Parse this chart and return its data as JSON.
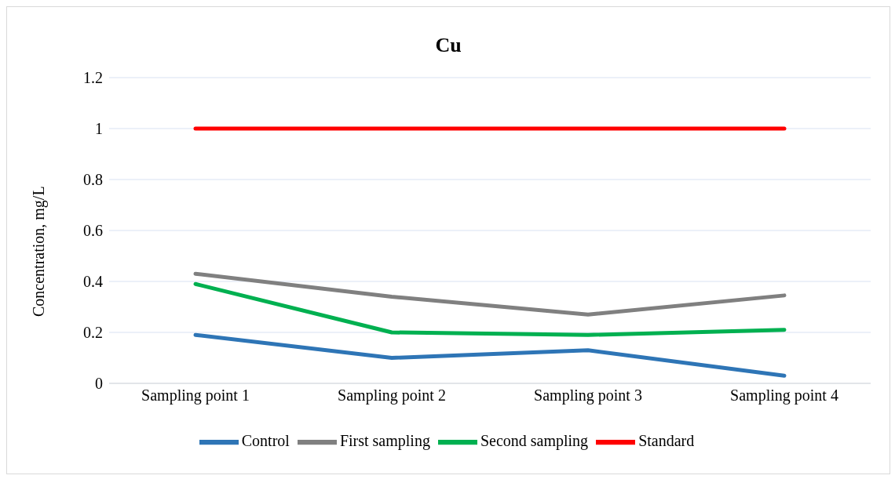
{
  "chart_data": {
    "type": "line",
    "title": "Cu",
    "ylabel": "Concentration, mg/L",
    "categories": [
      "Sampling point 1",
      "Sampling point 2",
      "Sampling point 3",
      "Sampling point 4"
    ],
    "series": [
      {
        "name": "Control",
        "color": "#2e75b6",
        "values": [
          0.19,
          0.1,
          0.13,
          0.03
        ]
      },
      {
        "name": "First sampling",
        "color": "#808080",
        "values": [
          0.43,
          0.34,
          0.27,
          0.345
        ]
      },
      {
        "name": "Second sampling",
        "color": "#00b050",
        "values": [
          0.39,
          0.2,
          0.19,
          0.21
        ]
      },
      {
        "name": "Standard",
        "color": "#ff0000",
        "values": [
          1,
          1,
          1,
          1
        ]
      }
    ],
    "ylim": [
      0,
      1.2
    ],
    "yticks": [
      0,
      0.2,
      0.4,
      0.6,
      0.8,
      1,
      1.2
    ],
    "grid": "y",
    "legend": "bottom",
    "marker": "none",
    "line_style": "solid"
  }
}
